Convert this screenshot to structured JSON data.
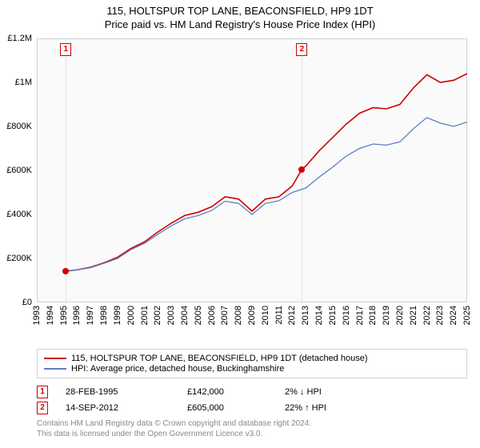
{
  "title": {
    "line1": "115, HOLTSPUR TOP LANE, BEACONSFIELD, HP9 1DT",
    "line2": "Price paid vs. HM Land Registry's House Price Index (HPI)",
    "fontsize": 13,
    "color": "#000000"
  },
  "chart": {
    "type": "line",
    "background_color": "#fafafa",
    "border_color": "#d0d0d0",
    "grid_color": "#eaeaea",
    "x": {
      "min": 1993,
      "max": 2025,
      "step": 1,
      "tick_fontsize": 11,
      "tick_rotation": -90
    },
    "y": {
      "min": 0,
      "max": 1200000,
      "step": 200000,
      "tick_labels": [
        "£0",
        "£200K",
        "£400K",
        "£600K",
        "£800K",
        "£1M",
        "£1.2M"
      ],
      "tick_fontsize": 11
    },
    "series": [
      {
        "name": "property",
        "label": "115, HOLTSPUR TOP LANE, BEACONSFIELD, HP9 1DT (detached house)",
        "color": "#d00000",
        "line_width": 1.6,
        "points": [
          [
            1995.16,
            142000
          ],
          [
            1996,
            148000
          ],
          [
            1997,
            160000
          ],
          [
            1998,
            180000
          ],
          [
            1999,
            205000
          ],
          [
            2000,
            245000
          ],
          [
            2001,
            275000
          ],
          [
            2002,
            320000
          ],
          [
            2003,
            360000
          ],
          [
            2004,
            395000
          ],
          [
            2005,
            410000
          ],
          [
            2006,
            435000
          ],
          [
            2007,
            480000
          ],
          [
            2008,
            470000
          ],
          [
            2009,
            415000
          ],
          [
            2010,
            470000
          ],
          [
            2011,
            480000
          ],
          [
            2012,
            530000
          ],
          [
            2012.71,
            605000
          ],
          [
            2013,
            620000
          ],
          [
            2014,
            690000
          ],
          [
            2015,
            750000
          ],
          [
            2016,
            810000
          ],
          [
            2017,
            860000
          ],
          [
            2018,
            885000
          ],
          [
            2019,
            880000
          ],
          [
            2020,
            900000
          ],
          [
            2021,
            975000
          ],
          [
            2022,
            1035000
          ],
          [
            2023,
            1000000
          ],
          [
            2024,
            1010000
          ],
          [
            2025,
            1040000
          ]
        ]
      },
      {
        "name": "hpi",
        "label": "HPI: Average price, detached house, Buckinghamshire",
        "color": "#5b80c4",
        "line_width": 1.3,
        "points": [
          [
            1995.16,
            142000
          ],
          [
            1996,
            148000
          ],
          [
            1997,
            158000
          ],
          [
            1998,
            178000
          ],
          [
            1999,
            200000
          ],
          [
            2000,
            240000
          ],
          [
            2001,
            268000
          ],
          [
            2002,
            310000
          ],
          [
            2003,
            348000
          ],
          [
            2004,
            380000
          ],
          [
            2005,
            395000
          ],
          [
            2006,
            418000
          ],
          [
            2007,
            460000
          ],
          [
            2008,
            450000
          ],
          [
            2009,
            400000
          ],
          [
            2010,
            450000
          ],
          [
            2011,
            462000
          ],
          [
            2012,
            500000
          ],
          [
            2013,
            520000
          ],
          [
            2014,
            570000
          ],
          [
            2015,
            615000
          ],
          [
            2016,
            665000
          ],
          [
            2017,
            700000
          ],
          [
            2018,
            720000
          ],
          [
            2019,
            715000
          ],
          [
            2020,
            730000
          ],
          [
            2021,
            790000
          ],
          [
            2022,
            840000
          ],
          [
            2023,
            815000
          ],
          [
            2024,
            800000
          ],
          [
            2025,
            820000
          ]
        ]
      }
    ],
    "markers": [
      {
        "n": "1",
        "x": 1995.16,
        "y": 142000,
        "dot_color": "#d00000",
        "box_top_offset": -26,
        "date": "28-FEB-1995",
        "price": "£142,000",
        "pct": "2% ↓ HPI"
      },
      {
        "n": "2",
        "x": 2012.71,
        "y": 605000,
        "dot_color": "#d00000",
        "box_top_offset": -26,
        "date": "14-SEP-2012",
        "price": "£605,000",
        "pct": "22% ↑ HPI"
      }
    ]
  },
  "legend": {
    "border_color": "#d0d0d0",
    "fontsize": 11
  },
  "footer": {
    "line1": "Contains HM Land Registry data © Crown copyright and database right 2024.",
    "line2": "This data is licensed under the Open Government Licence v3.0.",
    "color": "#888888",
    "fontsize": 10
  }
}
